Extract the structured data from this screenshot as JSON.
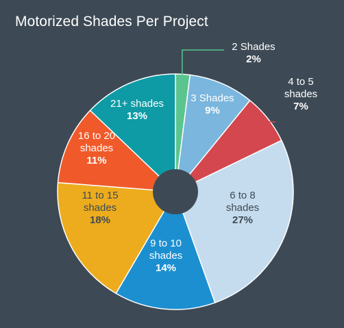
{
  "chart_data": {
    "type": "pie",
    "title": "Motorized Shades Per Project",
    "donut_hole": true,
    "legend": "none",
    "slices": [
      {
        "name_lines": [
          "2 Shades"
        ],
        "value": 2,
        "value_label": "2%",
        "color": "#5cc48f",
        "label_color": "#ffffff",
        "callout": true
      },
      {
        "name_lines": [
          "3 Shades"
        ],
        "value": 9,
        "value_label": "9%",
        "color": "#7ab6dd",
        "label_color": "#ffffff",
        "callout": false
      },
      {
        "name_lines": [
          "4 to 5",
          "shades"
        ],
        "value": 7,
        "value_label": "7%",
        "color": "#d4474e",
        "label_color": "#ffffff",
        "callout": true
      },
      {
        "name_lines": [
          "6 to 8",
          "shades"
        ],
        "value": 27,
        "value_label": "27%",
        "color": "#c5dcee",
        "label_color": "#3d4a55",
        "callout": false
      },
      {
        "name_lines": [
          "9 to 10",
          "shades"
        ],
        "value": 14,
        "value_label": "14%",
        "color": "#1c8fd0",
        "label_color": "#ffffff",
        "callout": false
      },
      {
        "name_lines": [
          "11 to 15",
          "shades"
        ],
        "value": 18,
        "value_label": "18%",
        "color": "#edac1d",
        "label_color": "#3d4a55",
        "callout": false
      },
      {
        "name_lines": [
          "16 to 20",
          "shades"
        ],
        "value": 11,
        "value_label": "11%",
        "color": "#f05a2a",
        "label_color": "#ffffff",
        "callout": false
      },
      {
        "name_lines": [
          "21+ shades"
        ],
        "value": 13,
        "value_label": "13%",
        "color": "#0e9ba6",
        "label_color": "#ffffff",
        "callout": false
      }
    ]
  },
  "colors": {
    "background": "#3d4a55",
    "slice_border": "#ffffff",
    "title": "#ffffff"
  }
}
